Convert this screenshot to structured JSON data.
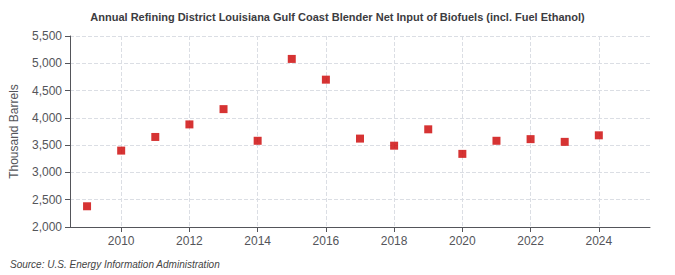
{
  "chart_data": {
    "type": "scatter",
    "title": "Annual Refining District Louisiana Gulf Coast Blender Net Input of Biofuels (incl. Fuel Ethanol)",
    "ylabel": "Thousand Barrels",
    "source": "Source: U.S. Energy Information Administration",
    "x": [
      2009,
      2010,
      2011,
      2012,
      2013,
      2014,
      2015,
      2016,
      2017,
      2018,
      2019,
      2020,
      2021,
      2022,
      2023,
      2024
    ],
    "values": [
      2380,
      3400,
      3650,
      3880,
      4160,
      3580,
      5080,
      4700,
      3620,
      3490,
      3790,
      3340,
      3580,
      3610,
      3560,
      3680
    ],
    "color": "#cc0000",
    "marker": "square",
    "xlim": [
      2008.5,
      2025.5
    ],
    "xticks": [
      2010,
      2012,
      2014,
      2016,
      2018,
      2020,
      2022,
      2024
    ],
    "ylim": [
      2000,
      5500
    ],
    "yticks": [
      {
        "value": 2000,
        "label": "2,000"
      },
      {
        "value": 2500,
        "label": "2,500"
      },
      {
        "value": 3000,
        "label": "3,000"
      },
      {
        "value": 3500,
        "label": "3,500"
      },
      {
        "value": 4000,
        "label": "4,000"
      },
      {
        "value": 4500,
        "label": "4,500"
      },
      {
        "value": 5000,
        "label": "5,000"
      },
      {
        "value": 5500,
        "label": "5,500"
      }
    ],
    "grid": true
  }
}
